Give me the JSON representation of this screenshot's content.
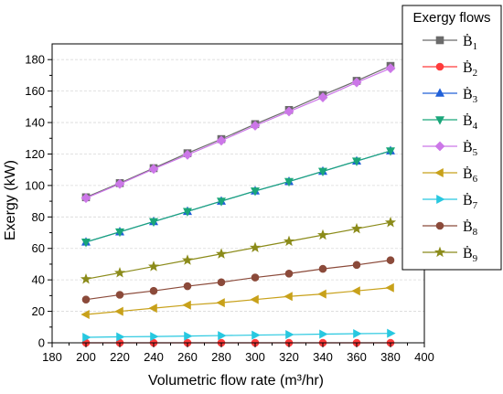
{
  "chart_data": {
    "type": "line",
    "title": "",
    "xlabel": "Volumetric flow rate (m³/hr)",
    "ylabel": "Exergy (kW)",
    "xlim": [
      180,
      400
    ],
    "ylim": [
      0,
      190
    ],
    "x_ticks": [
      180,
      200,
      220,
      240,
      260,
      280,
      300,
      320,
      340,
      360,
      380,
      400
    ],
    "y_ticks": [
      0,
      20,
      40,
      60,
      80,
      100,
      120,
      140,
      160,
      180
    ],
    "grid": "horizontal, dashed",
    "legend": {
      "title": "Exergy flows",
      "placement": "top-right"
    },
    "x": [
      200,
      220,
      240,
      260,
      280,
      300,
      320,
      340,
      360,
      380
    ],
    "series": [
      {
        "name": "Ḃ1",
        "color": "#6b6b6b",
        "marker": "square",
        "values": [
          92.5,
          101.5,
          111,
          120.5,
          129.5,
          139,
          148,
          157.5,
          166.5,
          176
        ]
      },
      {
        "name": "Ḃ2",
        "color": "#ff3b3b",
        "marker": "circle",
        "values": [
          0,
          0,
          0,
          0,
          0,
          0,
          0,
          0,
          0,
          0
        ]
      },
      {
        "name": "Ḃ3",
        "color": "#2060d8",
        "marker": "triangle-up",
        "values": [
          64,
          70.5,
          77,
          83.5,
          90,
          96.5,
          102.5,
          109,
          115.5,
          122
        ]
      },
      {
        "name": "Ḃ4",
        "color": "#1aa67a",
        "marker": "triangle-down",
        "values": [
          64,
          70.5,
          77,
          83.5,
          90,
          96.5,
          102.5,
          109,
          115.5,
          122
        ]
      },
      {
        "name": "Ḃ5",
        "color": "#cc77e8",
        "marker": "diamond",
        "values": [
          92,
          101,
          110.5,
          119.5,
          128.5,
          138,
          147,
          156,
          165.5,
          174.5
        ]
      },
      {
        "name": "Ḃ6",
        "color": "#c8a11a",
        "marker": "triangle-left",
        "values": [
          18,
          20,
          22,
          24,
          25.5,
          27.5,
          29.5,
          31,
          33,
          35
        ]
      },
      {
        "name": "Ḃ7",
        "color": "#28c8e0",
        "marker": "triangle-right",
        "values": [
          3.5,
          3.8,
          4,
          4.3,
          4.6,
          4.9,
          5.2,
          5.5,
          5.8,
          6
        ]
      },
      {
        "name": "Ḃ8",
        "color": "#8b4a3a",
        "marker": "circle",
        "values": [
          27.5,
          30.5,
          33,
          36,
          38.5,
          41.5,
          44,
          47,
          49.5,
          52.5
        ]
      },
      {
        "name": "Ḃ9",
        "color": "#8b8b1a",
        "marker": "star",
        "values": [
          40.5,
          44.5,
          48.5,
          52.5,
          56.5,
          60.5,
          64.5,
          68.5,
          72.5,
          76.5
        ]
      }
    ]
  }
}
